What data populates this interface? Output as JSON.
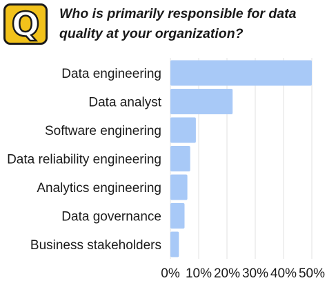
{
  "header": {
    "badge_letter": "Q",
    "badge_color": "#f2c21b",
    "question": "Who is primarily responsible for data quality at your organization?"
  },
  "chart_data": {
    "type": "bar",
    "orientation": "horizontal",
    "title": "Who is primarily responsible for data quality at your organization?",
    "categories": [
      "Data engineering",
      "Data analyst",
      "Software enginering",
      "Data reliability engineering",
      "Analytics engineering",
      "Data governance",
      "Business stakeholders"
    ],
    "values": [
      50,
      22,
      9,
      7,
      6,
      5,
      3
    ],
    "unit": "%",
    "xlim": [
      0,
      50
    ],
    "xticks": [
      "0%",
      "10%",
      "20%",
      "30%",
      "40%",
      "50%"
    ],
    "grid": true,
    "bar_color": "#a8c9f7",
    "grid_color": "#e6e6e6"
  }
}
